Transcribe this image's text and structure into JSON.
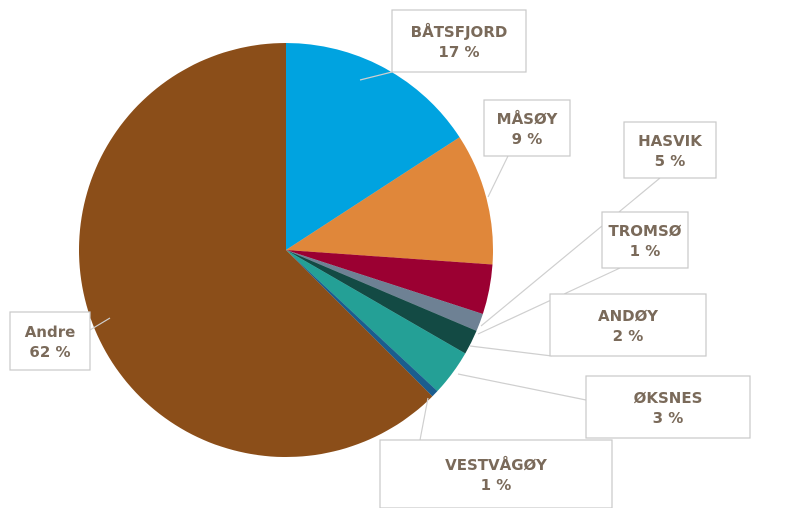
{
  "chart_data": {
    "type": "pie",
    "categories": [
      "BÅTSFJORD",
      "MÅSØY",
      "HASVIK",
      "TROMSØ",
      "ANDØY",
      "ØKSNES",
      "VESTVÅGØY",
      "Andre"
    ],
    "values": [
      17,
      9,
      5,
      1,
      2,
      3,
      1,
      62
    ],
    "labels": [
      "17 %",
      "9 %",
      "5 %",
      "1 %",
      "2 %",
      "3 %",
      "1 %",
      "62 %"
    ],
    "colors": [
      "#00a3e0",
      "#e0873a",
      "#9b0032",
      "#6e8194",
      "#134a44",
      "#24a096",
      "#1b5d8e",
      "#8b4e19"
    ],
    "label_color": "#7a6a5a",
    "legend": "none"
  }
}
